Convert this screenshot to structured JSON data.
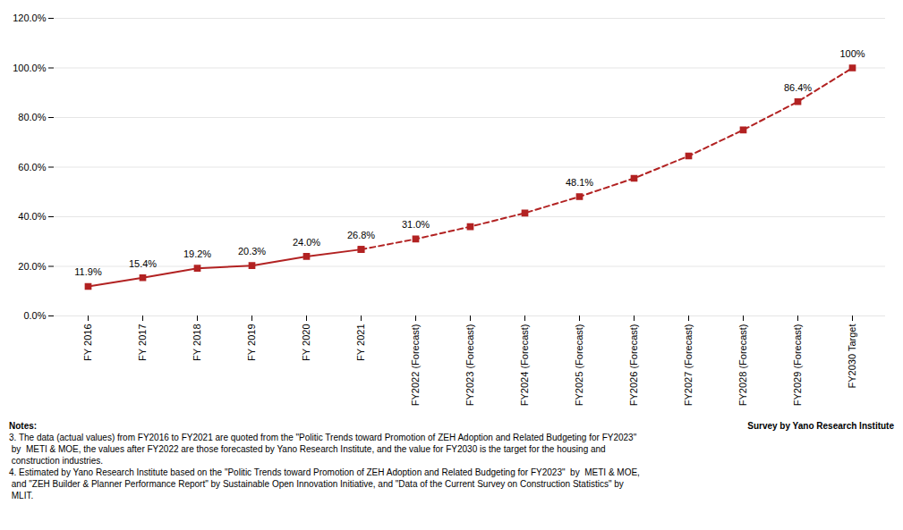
{
  "chart_data": {
    "type": "line",
    "categories": [
      "FY 2016",
      "FY 2017",
      "FY 2018",
      "FY 2019",
      "FY 2020",
      "FY 2021",
      "FY2022 (Forecast)",
      "FY2023 (Forecast)",
      "FY2024 (Forecast)",
      "FY2025 (Forecast)",
      "FY2026 (Forecast)",
      "FY2027 (Forecast)",
      "FY2028 (Forecast)",
      "FY2029 (Forecast)",
      "FY2030 Target"
    ],
    "series": [
      {
        "color": "#b22222",
        "line_style": "solid",
        "marker": "square",
        "values": [
          11.9,
          15.4,
          19.2,
          20.3,
          24.0,
          26.8,
          null,
          null,
          null,
          null,
          null,
          null,
          null,
          null,
          null
        ]
      },
      {
        "color": "#b22222",
        "line_style": "dashed",
        "marker": "square",
        "values": [
          null,
          null,
          null,
          null,
          null,
          26.8,
          31.0,
          36.0,
          41.5,
          48.1,
          55.5,
          64.5,
          75.0,
          86.4,
          100.0
        ]
      }
    ],
    "data_labels": true,
    "value_labels": [
      "11.9%",
      "15.4%",
      "19.2%",
      "20.3%",
      "24.0%",
      "26.8%",
      "31.0%",
      null,
      null,
      "48.1%",
      null,
      null,
      null,
      "86.4%",
      "100%"
    ],
    "ylim": [
      0,
      120
    ],
    "yticks": [
      {
        "value": 0,
        "label": "0.0%"
      },
      {
        "value": 20,
        "label": "20.0%"
      },
      {
        "value": 40,
        "label": "40.0%"
      },
      {
        "value": 60,
        "label": "60.0%"
      },
      {
        "value": 80,
        "label": "80.0%"
      },
      {
        "value": 100,
        "label": "100.0%"
      },
      {
        "value": 120,
        "label": "120.0%"
      }
    ],
    "grid": true,
    "notes_title": "Notes:",
    "source": "Survey by Yano Research Institute",
    "notes": [
      "3. The data (actual values) from FY2016 to FY2021 are quoted from the \"Politic Trends toward Promotion of ZEH Adoption and Related Budgeting for FY2023\"",
      " by  METI & MOE, the values after FY2022 are those forecasted by Yano Research Institute, and the value for FY2030 is the target for the housing and",
      " construction industries.",
      "4. Estimated by Yano Research Institute based on the \"Politic Trends toward Promotion of ZEH Adoption and Related Budgeting for FY2023\"  by  METI & MOE,",
      " and \"ZEH Builder & Planner Performance Report\" by Sustainable Open Innovation Initiative, and \"Data of the Current Survey on Construction Statistics\" by",
      " MLIT."
    ]
  }
}
